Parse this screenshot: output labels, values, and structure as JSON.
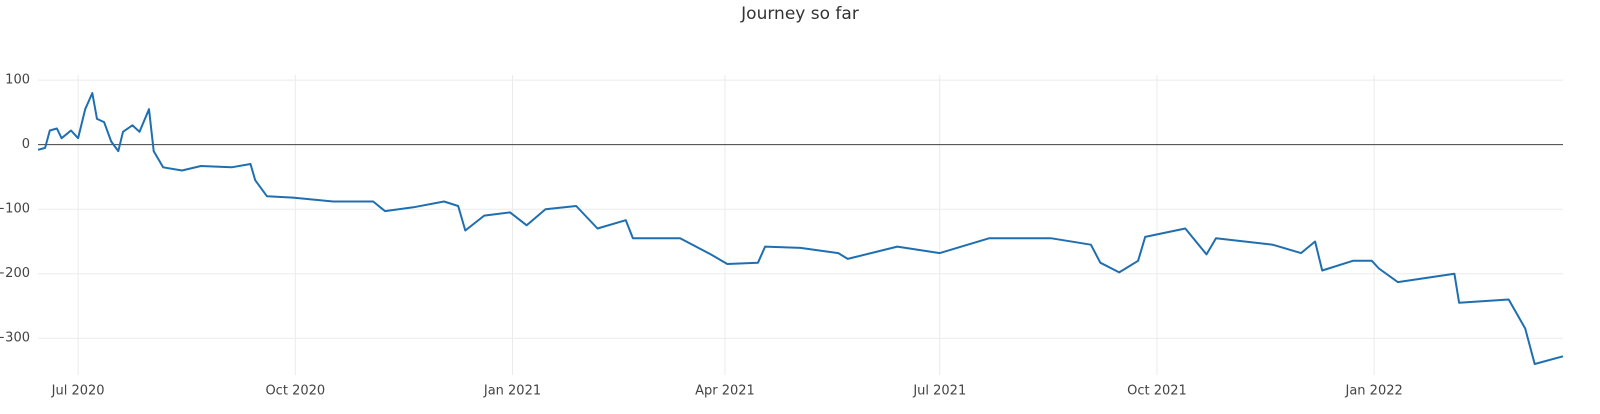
{
  "chart_data": {
    "type": "line",
    "title": "Journey so far",
    "x": [
      "2020-06-14",
      "2020-06-17",
      "2020-06-19",
      "2020-06-22",
      "2020-06-24",
      "2020-06-28",
      "2020-07-01",
      "2020-07-04",
      "2020-07-07",
      "2020-07-09",
      "2020-07-12",
      "2020-07-15",
      "2020-07-18",
      "2020-07-20",
      "2020-07-24",
      "2020-07-27",
      "2020-07-31",
      "2020-08-02",
      "2020-08-06",
      "2020-08-14",
      "2020-08-22",
      "2020-09-04",
      "2020-09-12",
      "2020-09-14",
      "2020-09-19",
      "2020-09-30",
      "2020-10-17",
      "2020-11-03",
      "2020-11-08",
      "2020-11-20",
      "2020-12-03",
      "2020-12-09",
      "2020-12-12",
      "2020-12-20",
      "2020-12-31",
      "2021-01-07",
      "2021-01-15",
      "2021-01-28",
      "2021-02-06",
      "2021-02-18",
      "2021-02-21",
      "2021-03-13",
      "2021-03-26",
      "2021-04-02",
      "2021-04-15",
      "2021-04-18",
      "2021-05-03",
      "2021-05-19",
      "2021-05-23",
      "2021-06-13",
      "2021-07-01",
      "2021-07-22",
      "2021-08-17",
      "2021-09-03",
      "2021-09-07",
      "2021-09-15",
      "2021-09-23",
      "2021-09-26",
      "2021-10-13",
      "2021-10-22",
      "2021-10-26",
      "2021-11-19",
      "2021-12-01",
      "2021-12-07",
      "2021-12-10",
      "2021-12-23",
      "2021-12-31",
      "2022-01-03",
      "2022-01-11",
      "2022-02-04",
      "2022-02-06",
      "2022-02-27",
      "2022-03-06",
      "2022-03-10",
      "2022-03-22"
    ],
    "values": [
      -8,
      -5,
      22,
      25,
      10,
      22,
      10,
      55,
      80,
      40,
      35,
      5,
      -10,
      20,
      30,
      20,
      55,
      -10,
      -35,
      -40,
      -33,
      -35,
      -30,
      -55,
      -80,
      -82,
      -88,
      -88,
      -103,
      -97,
      -88,
      -95,
      -133,
      -110,
      -105,
      -125,
      -100,
      -95,
      -130,
      -117,
      -145,
      -145,
      -170,
      -185,
      -183,
      -158,
      -160,
      -168,
      -177,
      -158,
      -168,
      -145,
      -145,
      -155,
      -183,
      -198,
      -180,
      -143,
      -130,
      -170,
      -145,
      -155,
      -168,
      -150,
      -195,
      -180,
      -180,
      -192,
      -213,
      -200,
      -245,
      -240,
      -285,
      -340,
      -328
    ],
    "color": "#1f6fb0",
    "xlim": [
      "2020-06-14",
      "2022-03-22"
    ],
    "xticks": [
      {
        "value": "2020-07-01",
        "label": "Jul 2020"
      },
      {
        "value": "2020-10-01",
        "label": "Oct 2020"
      },
      {
        "value": "2021-01-01",
        "label": "Jan 2021"
      },
      {
        "value": "2021-04-01",
        "label": "Apr 2021"
      },
      {
        "value": "2021-07-01",
        "label": "Jul 2021"
      },
      {
        "value": "2021-10-01",
        "label": "Oct 2021"
      },
      {
        "value": "2022-01-01",
        "label": "Jan 2022"
      }
    ],
    "ylim": [
      -357,
      108
    ],
    "yticks": [
      {
        "value": -300,
        "label": "−300"
      },
      {
        "value": -200,
        "label": "−200"
      },
      {
        "value": -100,
        "label": "−100"
      },
      0,
      100
    ],
    "grid": true,
    "zeroline": true
  }
}
